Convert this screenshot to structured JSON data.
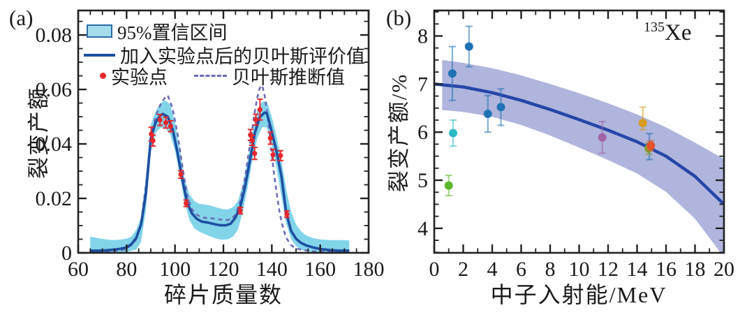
{
  "figure": {
    "panel_a": {
      "tag": "(a)"
    },
    "panel_b": {
      "tag": "(b)"
    }
  },
  "chart_data": [
    {
      "id": "panel_a",
      "type": "line",
      "xlabel": "碎片质量数",
      "ylabel": "裂变产额",
      "xlim": [
        60,
        180
      ],
      "ylim": [
        0,
        0.089
      ],
      "x_ticks": [
        60,
        80,
        100,
        120,
        140,
        160,
        180
      ],
      "x_tick_labels": [
        "60",
        "80",
        "100",
        "120",
        "140",
        "160",
        "180"
      ],
      "x_minor_step": 5,
      "y_ticks": [
        0,
        0.02,
        0.04,
        0.06,
        0.08
      ],
      "y_tick_labels": [
        "0",
        "0.02",
        "0.04",
        "0.06",
        "0.08"
      ],
      "y_minor_step": 0.005,
      "grid": false,
      "legend_position": "top-left-inside",
      "legend": {
        "band": "95%置信区间",
        "evaluated": "加入实验点后的贝叶斯评价值",
        "experimental": "实验点",
        "inferred": "贝叶斯推断值"
      },
      "colors": {
        "band": "#82d4e9",
        "evaluated": "#1d4fa1",
        "inferred": "#6a6cb5",
        "experimental": "#e8262b",
        "axis": "#222222"
      },
      "band": {
        "x": [
          65,
          68,
          71,
          74,
          77,
          80,
          82,
          84,
          86,
          88,
          90,
          92,
          94,
          96,
          98,
          100,
          102,
          104,
          106,
          108,
          110,
          112,
          114,
          116,
          118,
          120,
          122,
          124,
          126,
          128,
          130,
          132,
          134,
          136,
          138,
          140,
          142,
          144,
          146,
          148,
          150,
          152,
          154,
          157,
          160,
          164,
          168,
          172
        ],
        "upper": [
          0.006,
          0.0054,
          0.005,
          0.0047,
          0.0048,
          0.0052,
          0.006,
          0.0085,
          0.013,
          0.028,
          0.047,
          0.052,
          0.055,
          0.056,
          0.0545,
          0.048,
          0.038,
          0.027,
          0.0215,
          0.019,
          0.018,
          0.0178,
          0.0175,
          0.017,
          0.0165,
          0.016,
          0.016,
          0.0168,
          0.019,
          0.025,
          0.034,
          0.044,
          0.0525,
          0.0555,
          0.0555,
          0.05,
          0.0425,
          0.034,
          0.023,
          0.015,
          0.0105,
          0.008,
          0.0065,
          0.0054,
          0.0049,
          0.0047,
          0.0047,
          0.0046
        ],
        "lower": [
          0.0002,
          0.0002,
          0.0002,
          0.0002,
          0.0002,
          0.0003,
          0.0008,
          0.0012,
          0.004,
          0.016,
          0.037,
          0.044,
          0.046,
          0.046,
          0.0435,
          0.0375,
          0.0285,
          0.0185,
          0.012,
          0.009,
          0.0078,
          0.007,
          0.0062,
          0.0056,
          0.005,
          0.0048,
          0.005,
          0.006,
          0.0085,
          0.015,
          0.024,
          0.034,
          0.042,
          0.0462,
          0.046,
          0.0395,
          0.031,
          0.0205,
          0.0105,
          0.005,
          0.0025,
          0.0012,
          0.0006,
          0.0003,
          0.0002,
          0.0002,
          0.0002,
          0.0002
        ]
      },
      "evaluated_curve": {
        "x": [
          65,
          68,
          71,
          74,
          77,
          80,
          82,
          84,
          86,
          88,
          90,
          92,
          94,
          95,
          97,
          99,
          101,
          103,
          105,
          107,
          109,
          111,
          113,
          115,
          117,
          119,
          121,
          123,
          125,
          127,
          129,
          131,
          133,
          135,
          137,
          138,
          140,
          142,
          144,
          146,
          148,
          150,
          152,
          154,
          157,
          160,
          164,
          168,
          172
        ],
        "y": [
          0.0008,
          0.0008,
          0.0009,
          0.0011,
          0.0014,
          0.002,
          0.0032,
          0.0055,
          0.0105,
          0.022,
          0.042,
          0.048,
          0.0505,
          0.051,
          0.05,
          0.0455,
          0.037,
          0.027,
          0.0185,
          0.0145,
          0.0125,
          0.0115,
          0.0112,
          0.0108,
          0.0104,
          0.0101,
          0.0101,
          0.0107,
          0.013,
          0.017,
          0.0245,
          0.034,
          0.044,
          0.0498,
          0.0515,
          0.0512,
          0.0445,
          0.037,
          0.028,
          0.0145,
          0.008,
          0.0052,
          0.0037,
          0.0028,
          0.002,
          0.0014,
          0.001,
          0.0008,
          0.0008
        ]
      },
      "inferred_curve": {
        "x": [
          65,
          70,
          75,
          79,
          82,
          84,
          86,
          88,
          90,
          92,
          94,
          96,
          97,
          99,
          101,
          103,
          105,
          107,
          109,
          111,
          113,
          115,
          117,
          119,
          121,
          123,
          125,
          127,
          129,
          131,
          133,
          134,
          135,
          136,
          137,
          138,
          139,
          140,
          141,
          142,
          143,
          144,
          145,
          146,
          148,
          150,
          153,
          157,
          162,
          168,
          172
        ],
        "y": [
          0.0005,
          0.0005,
          0.0007,
          0.0012,
          0.0028,
          0.005,
          0.011,
          0.025,
          0.042,
          0.05,
          0.0545,
          0.0572,
          0.0578,
          0.053,
          0.044,
          0.032,
          0.021,
          0.016,
          0.014,
          0.013,
          0.0128,
          0.0127,
          0.0125,
          0.0122,
          0.012,
          0.0122,
          0.014,
          0.019,
          0.028,
          0.04,
          0.052,
          0.057,
          0.0605,
          0.0615,
          0.058,
          0.052,
          0.0445,
          0.036,
          0.0285,
          0.022,
          0.016,
          0.0115,
          0.008,
          0.0055,
          0.0028,
          0.0016,
          0.001,
          0.0006,
          0.0004,
          0.0004,
          0.0004
        ]
      },
      "experimental_points": [
        [
          90.2,
          0.0436,
          0.0025
        ],
        [
          90.9,
          0.0412,
          0.002
        ],
        [
          93.8,
          0.0488,
          0.002
        ],
        [
          96.2,
          0.0478,
          0.002
        ],
        [
          98.2,
          0.0465,
          0.002
        ],
        [
          102.4,
          0.0288,
          0.0014
        ],
        [
          104.6,
          0.0182,
          0.0012
        ],
        [
          127.0,
          0.0155,
          0.0012
        ],
        [
          131.2,
          0.0433,
          0.002
        ],
        [
          131.9,
          0.0413,
          0.0018
        ],
        [
          132.9,
          0.0365,
          0.0022
        ],
        [
          133.4,
          0.0489,
          0.002
        ],
        [
          135.1,
          0.0526,
          0.0038
        ],
        [
          139.4,
          0.0421,
          0.0022
        ],
        [
          140.5,
          0.036,
          0.002
        ],
        [
          143.6,
          0.0357,
          0.0018
        ],
        [
          146.2,
          0.0142,
          0.0012
        ]
      ]
    },
    {
      "id": "panel_b",
      "type": "line",
      "xlabel": "中子入射能/MeV",
      "ylabel": "裂变产额/%",
      "annotation_mass": "135",
      "annotation_symbol": "Xe",
      "xlim": [
        0,
        20
      ],
      "ylim": [
        3.49,
        8.53
      ],
      "x_ticks": [
        0,
        2,
        4,
        6,
        8,
        10,
        12,
        14,
        16,
        18,
        20
      ],
      "x_tick_labels": [
        "0",
        "2",
        "4",
        "6",
        "8",
        "10",
        "12",
        "14",
        "16",
        "18",
        "20"
      ],
      "x_minor_step": 1,
      "y_ticks": [
        4,
        5,
        6,
        7,
        8
      ],
      "y_tick_labels": [
        "4",
        "5",
        "6",
        "7",
        "8"
      ],
      "y_minor_step": 0.25,
      "grid": false,
      "colors": {
        "band": "#abb1da",
        "curve": "#2646a8",
        "axis": "#222222"
      },
      "band": {
        "x": [
          0.55,
          2,
          4,
          6,
          8,
          10,
          12,
          14,
          16,
          18,
          20
        ],
        "upper": [
          7.5,
          7.44,
          7.33,
          7.18,
          7.0,
          6.81,
          6.6,
          6.37,
          6.1,
          5.78,
          5.44
        ],
        "lower": [
          6.46,
          6.42,
          6.32,
          6.15,
          5.93,
          5.68,
          5.42,
          5.14,
          4.76,
          4.2,
          3.4
        ]
      },
      "curve": {
        "x": [
          0,
          2,
          4,
          6,
          8,
          10,
          12,
          14,
          16,
          18,
          20
        ],
        "y": [
          7.0,
          6.94,
          6.82,
          6.66,
          6.47,
          6.26,
          6.04,
          5.8,
          5.5,
          5.08,
          4.5
        ]
      },
      "points": [
        {
          "x": 1.25,
          "y": 7.22,
          "err": 0.56,
          "color": "#2171b5"
        },
        {
          "x": 2.4,
          "y": 7.78,
          "err": 0.42,
          "color": "#2171b5"
        },
        {
          "x": 3.7,
          "y": 6.38,
          "err": 0.38,
          "color": "#2171b5"
        },
        {
          "x": 4.6,
          "y": 6.52,
          "err": 0.38,
          "color": "#2171b5"
        },
        {
          "x": 1.3,
          "y": 5.98,
          "err": 0.27,
          "color": "#2bbac6"
        },
        {
          "x": 1.0,
          "y": 4.89,
          "err": 0.21,
          "color": "#5cb62e"
        },
        {
          "x": 11.6,
          "y": 5.89,
          "err": 0.33,
          "color": "#a263a8"
        },
        {
          "x": 14.4,
          "y": 6.19,
          "err_up": 0.33,
          "err_down": 0.14,
          "color": "#d79b22"
        },
        {
          "x": 14.85,
          "y": 5.7,
          "err": 0.27,
          "color": "#2171b5"
        },
        {
          "x": 14.8,
          "y": 5.66,
          "err": 0.12,
          "color": "#8d9b2e"
        },
        {
          "x": 14.95,
          "y": 5.72,
          "err": 0.1,
          "color": "#e5512b"
        }
      ]
    }
  ]
}
